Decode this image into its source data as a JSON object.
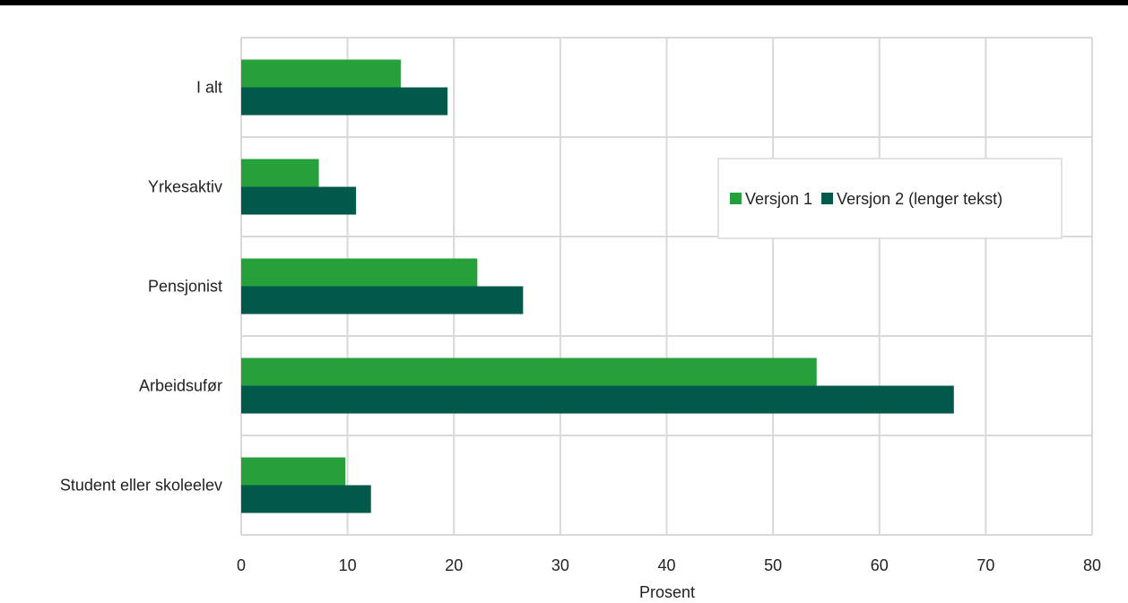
{
  "chart_data": {
    "type": "bar",
    "orientation": "horizontal",
    "categories": [
      "I alt",
      "Yrkesaktiv",
      "Pensjonist",
      "Arbeidsufør",
      "Student eller skoleelev"
    ],
    "series": [
      {
        "name": "Versjon 1",
        "color": "#25a03a",
        "values": [
          15.0,
          7.3,
          22.2,
          54.1,
          9.8
        ]
      },
      {
        "name": "Versjon 2 (lenger tekst)",
        "color": "#00594a",
        "values": [
          19.4,
          10.8,
          26.5,
          67.0,
          12.2
        ]
      }
    ],
    "xlabel": "Prosent",
    "ylabel": "",
    "xlim": [
      0,
      80
    ],
    "xticks": [
      0,
      10,
      20,
      30,
      40,
      50,
      60,
      70,
      80
    ],
    "grid": true,
    "legend_position": "right"
  }
}
